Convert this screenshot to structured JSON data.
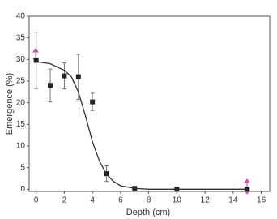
{
  "chart_data": {
    "type": "scatter",
    "x_label": "Depth (cm)",
    "y_label": "Emergence (%)",
    "xlim": [
      -0.5,
      16.6
    ],
    "ylim": [
      -0.5,
      40
    ],
    "xticks": [
      0,
      2,
      4,
      6,
      8,
      10,
      12,
      14,
      16
    ],
    "yticks": [
      0,
      5,
      10,
      15,
      20,
      25,
      30,
      35,
      40
    ],
    "series": [
      {
        "type": "scatter",
        "color": "#222222",
        "x": [
          0,
          1,
          2,
          3,
          4,
          5,
          7,
          10,
          15
        ],
        "values": [
          29.8,
          24,
          26.2,
          26,
          20.2,
          3.6,
          0.2,
          0,
          0
        ],
        "errors": [
          6.5,
          3.8,
          3,
          5.2,
          2,
          1.8,
          0.3,
          0,
          0
        ]
      },
      {
        "type": "line",
        "color": "#333333",
        "x": [
          0,
          1,
          2,
          2.5,
          3,
          3.5,
          4,
          4.5,
          5,
          5.5,
          6,
          7,
          8,
          10,
          12,
          15
        ],
        "values": [
          29.5,
          29,
          27.5,
          26,
          22.5,
          17,
          11,
          6.5,
          3.5,
          1.8,
          0.8,
          0.2,
          0,
          0,
          0,
          0
        ]
      }
    ]
  }
}
